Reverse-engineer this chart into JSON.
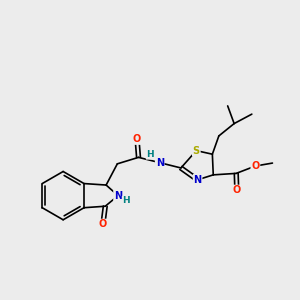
{
  "bg_color": "#ececec",
  "bond_color": "#000000",
  "atom_colors": {
    "N": "#0000cc",
    "O": "#ff2200",
    "S": "#aaaa00",
    "H_amide": "#008080",
    "C": "#000000"
  },
  "font_size": 7.0,
  "line_width": 1.2
}
